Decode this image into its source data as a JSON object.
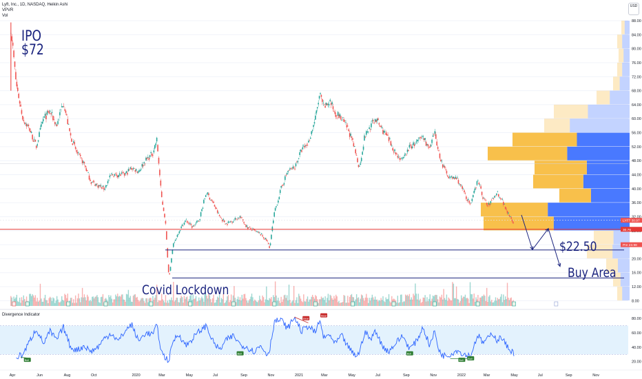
{
  "header": {
    "symbol_line": "Lyft, Inc., 1D, NASDAQ, Heikin Ashi",
    "vpvr_label": "VPVR",
    "vol_label": "Vol",
    "currency": "USD"
  },
  "annotations": {
    "ipo_line1": "IPO",
    "ipo_line2": "$72",
    "covid": "Covid Lockdown",
    "level": "$22.50",
    "buy_area": "Buy Area"
  },
  "colors": {
    "up": "#26a69a",
    "down": "#ef5350",
    "vp_up": "#2962ff",
    "vp_down": "#f7b52b",
    "drawing": "#1a237e",
    "red_line": "#e53935",
    "osc_line": "#2962ff",
    "osc_band": "#e3f2fd"
  },
  "chart_data": [
    {
      "type": "candlestick",
      "title": "Lyft, Inc., 1D, NASDAQ, Heikin Ashi",
      "x_tick_labels": [
        "Apr",
        "Jun",
        "Aug",
        "Oct",
        "2020",
        "Mar",
        "May",
        "Jul",
        "Sep",
        "Nov",
        "2021",
        "Mar",
        "May",
        "Jul",
        "Sep",
        "Nov",
        "2022",
        "Mar",
        "May",
        "Jul",
        "Sep",
        "Nov"
      ],
      "y_tick_labels": [
        "88.00",
        "84.00",
        "80.00",
        "76.00",
        "72.00",
        "68.00",
        "64.00",
        "60.00",
        "56.00",
        "52.00",
        "48.00",
        "44.00",
        "40.00",
        "36.00",
        "32.00",
        "28.00",
        "24.00",
        "20.00",
        "16.00",
        "12.00",
        "8.00"
      ],
      "ylim": [
        6.5,
        88
      ],
      "price_path": [
        [
          "2019-03-29",
          86
        ],
        [
          "2019-04-10",
          70
        ],
        [
          "2019-04-25",
          60
        ],
        [
          "2019-05-10",
          57
        ],
        [
          "2019-05-25",
          52
        ],
        [
          "2019-06-10",
          60
        ],
        [
          "2019-06-25",
          62
        ],
        [
          "2019-07-10",
          58
        ],
        [
          "2019-07-25",
          65
        ],
        [
          "2019-08-10",
          55
        ],
        [
          "2019-08-25",
          50
        ],
        [
          "2019-09-10",
          47
        ],
        [
          "2019-09-25",
          42
        ],
        [
          "2019-10-10",
          41
        ],
        [
          "2019-10-25",
          40
        ],
        [
          "2019-11-10",
          44
        ],
        [
          "2019-11-25",
          44
        ],
        [
          "2019-12-10",
          44
        ],
        [
          "2019-12-25",
          46
        ],
        [
          "2020-01-10",
          45
        ],
        [
          "2020-01-25",
          48
        ],
        [
          "2020-02-10",
          50
        ],
        [
          "2020-02-20",
          54
        ],
        [
          "2020-03-01",
          38
        ],
        [
          "2020-03-10",
          31
        ],
        [
          "2020-03-18",
          14.5
        ],
        [
          "2020-03-28",
          24
        ],
        [
          "2020-04-10",
          28
        ],
        [
          "2020-04-25",
          31
        ],
        [
          "2020-05-10",
          29
        ],
        [
          "2020-05-25",
          31
        ],
        [
          "2020-06-10",
          39
        ],
        [
          "2020-06-25",
          36
        ],
        [
          "2020-07-10",
          32
        ],
        [
          "2020-07-25",
          30
        ],
        [
          "2020-08-10",
          31
        ],
        [
          "2020-08-25",
          32
        ],
        [
          "2020-09-10",
          29
        ],
        [
          "2020-09-25",
          28
        ],
        [
          "2020-10-10",
          27
        ],
        [
          "2020-10-25",
          25
        ],
        [
          "2020-10-30",
          23
        ],
        [
          "2020-11-10",
          33
        ],
        [
          "2020-11-25",
          40
        ],
        [
          "2020-12-10",
          45
        ],
        [
          "2020-12-25",
          46
        ],
        [
          "2021-01-10",
          51
        ],
        [
          "2021-01-25",
          53
        ],
        [
          "2021-02-10",
          60
        ],
        [
          "2021-02-20",
          67
        ],
        [
          "2021-03-01",
          63
        ],
        [
          "2021-03-15",
          65
        ],
        [
          "2021-03-25",
          62
        ],
        [
          "2021-04-10",
          60
        ],
        [
          "2021-04-25",
          57
        ],
        [
          "2021-05-10",
          51
        ],
        [
          "2021-05-20",
          46
        ],
        [
          "2021-06-01",
          55
        ],
        [
          "2021-06-15",
          58
        ],
        [
          "2021-06-25",
          60
        ],
        [
          "2021-07-10",
          57
        ],
        [
          "2021-07-25",
          54
        ],
        [
          "2021-08-10",
          50
        ],
        [
          "2021-08-25",
          48
        ],
        [
          "2021-09-10",
          52
        ],
        [
          "2021-09-25",
          53
        ],
        [
          "2021-10-10",
          55
        ],
        [
          "2021-10-25",
          51
        ],
        [
          "2021-11-05",
          56
        ],
        [
          "2021-11-15",
          50
        ],
        [
          "2021-11-25",
          46
        ],
        [
          "2021-12-10",
          43
        ],
        [
          "2021-12-25",
          43
        ],
        [
          "2022-01-10",
          39
        ],
        [
          "2022-01-25",
          35
        ],
        [
          "2022-02-10",
          43
        ],
        [
          "2022-02-20",
          38
        ],
        [
          "2022-03-05",
          35
        ],
        [
          "2022-03-15",
          37
        ],
        [
          "2022-03-25",
          39
        ],
        [
          "2022-04-05",
          37
        ],
        [
          "2022-04-15",
          34
        ],
        [
          "2022-04-25",
          32
        ],
        [
          "2022-05-02",
          30
        ]
      ],
      "current_price_label": "30.97",
      "current_price_tag": "LYFT",
      "red_line_level": "30.76",
      "pre_market_label": "23.98",
      "pre_market_tag": "Pre",
      "horizontal_levels": [
        22.5,
        14.5
      ]
    },
    {
      "type": "line",
      "title": "Divergence Indicator",
      "y_tick_labels": [
        "80.00",
        "60.00",
        "40.00",
        "20.00"
      ],
      "ylim": [
        12,
        86
      ],
      "band": [
        30,
        70
      ],
      "signal_labels": [
        "Bull",
        "Bull",
        "Bear",
        "Bear",
        "Bull",
        "Bull",
        "Bull"
      ],
      "rsi_path": [
        [
          "2019-04-10",
          26
        ],
        [
          "2019-04-25",
          30
        ],
        [
          "2019-05-10",
          48
        ],
        [
          "2019-05-25",
          66
        ],
        [
          "2019-06-10",
          45
        ],
        [
          "2019-06-25",
          62
        ],
        [
          "2019-07-10",
          50
        ],
        [
          "2019-07-25",
          68
        ],
        [
          "2019-08-10",
          40
        ],
        [
          "2019-08-25",
          36
        ],
        [
          "2019-09-10",
          42
        ],
        [
          "2019-09-25",
          34
        ],
        [
          "2019-10-10",
          40
        ],
        [
          "2019-10-25",
          52
        ],
        [
          "2019-11-10",
          60
        ],
        [
          "2019-11-25",
          48
        ],
        [
          "2019-12-10",
          62
        ],
        [
          "2019-12-25",
          72
        ],
        [
          "2020-01-10",
          48
        ],
        [
          "2020-01-25",
          60
        ],
        [
          "2020-02-10",
          58
        ],
        [
          "2020-02-20",
          70
        ],
        [
          "2020-03-01",
          34
        ],
        [
          "2020-03-10",
          25
        ],
        [
          "2020-03-18",
          22
        ],
        [
          "2020-03-28",
          50
        ],
        [
          "2020-04-10",
          58
        ],
        [
          "2020-04-25",
          42
        ],
        [
          "2020-05-10",
          52
        ],
        [
          "2020-05-25",
          62
        ],
        [
          "2020-06-10",
          70
        ],
        [
          "2020-06-25",
          48
        ],
        [
          "2020-07-10",
          36
        ],
        [
          "2020-07-25",
          50
        ],
        [
          "2020-08-10",
          56
        ],
        [
          "2020-08-25",
          44
        ],
        [
          "2020-09-10",
          40
        ],
        [
          "2020-09-25",
          34
        ],
        [
          "2020-10-10",
          42
        ],
        [
          "2020-10-25",
          30
        ],
        [
          "2020-10-30",
          36
        ],
        [
          "2020-11-10",
          76
        ],
        [
          "2020-11-25",
          78
        ],
        [
          "2020-12-10",
          66
        ],
        [
          "2020-12-25",
          82
        ],
        [
          "2021-01-10",
          62
        ],
        [
          "2021-01-25",
          70
        ],
        [
          "2021-02-10",
          60
        ],
        [
          "2021-02-20",
          78
        ],
        [
          "2021-03-01",
          52
        ],
        [
          "2021-03-15",
          58
        ],
        [
          "2021-03-25",
          44
        ],
        [
          "2021-04-10",
          56
        ],
        [
          "2021-04-25",
          40
        ],
        [
          "2021-05-10",
          28
        ],
        [
          "2021-05-20",
          32
        ],
        [
          "2021-06-01",
          62
        ],
        [
          "2021-06-15",
          50
        ],
        [
          "2021-06-25",
          64
        ],
        [
          "2021-07-10",
          42
        ],
        [
          "2021-07-25",
          34
        ],
        [
          "2021-08-10",
          46
        ],
        [
          "2021-08-25",
          56
        ],
        [
          "2021-09-10",
          38
        ],
        [
          "2021-09-25",
          48
        ],
        [
          "2021-10-10",
          68
        ],
        [
          "2021-10-25",
          42
        ],
        [
          "2021-11-05",
          62
        ],
        [
          "2021-11-15",
          35
        ],
        [
          "2021-11-25",
          28
        ],
        [
          "2021-12-10",
          30
        ],
        [
          "2021-12-25",
          36
        ],
        [
          "2022-01-10",
          30
        ],
        [
          "2022-01-25",
          28
        ],
        [
          "2022-02-10",
          58
        ],
        [
          "2022-02-20",
          46
        ],
        [
          "2022-03-05",
          52
        ],
        [
          "2022-03-15",
          60
        ],
        [
          "2022-03-25",
          50
        ],
        [
          "2022-04-05",
          54
        ],
        [
          "2022-04-15",
          42
        ],
        [
          "2022-04-25",
          36
        ],
        [
          "2022-05-02",
          32
        ]
      ]
    }
  ]
}
